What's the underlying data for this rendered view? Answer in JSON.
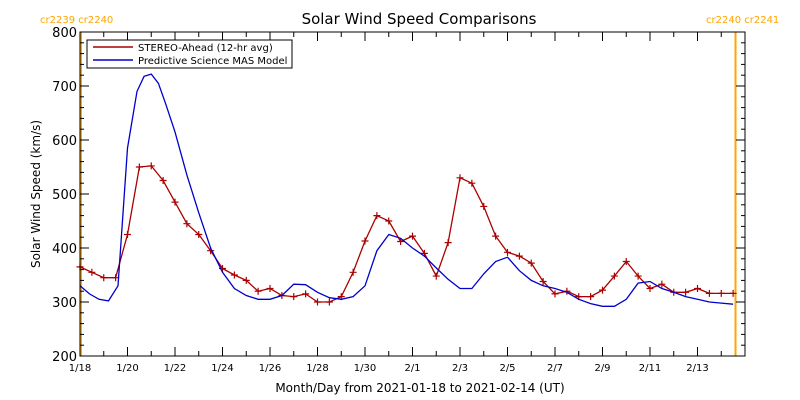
{
  "chart_data": {
    "type": "line",
    "title": "Solar Wind Speed Comparisons",
    "xlabel": "Month/Day from 2021-01-18 to 2021-02-14 (UT)",
    "ylabel": "Solar Wind Speed (km/s)",
    "ylim": [
      200,
      800
    ],
    "xlim_days": [
      0,
      28
    ],
    "x_ticks": [
      {
        "day": 0,
        "label": "1/18"
      },
      {
        "day": 2,
        "label": "1/20"
      },
      {
        "day": 4,
        "label": "1/22"
      },
      {
        "day": 6,
        "label": "1/24"
      },
      {
        "day": 8,
        "label": "1/26"
      },
      {
        "day": 10,
        "label": "1/28"
      },
      {
        "day": 12,
        "label": "1/30"
      },
      {
        "day": 14,
        "label": "2/1"
      },
      {
        "day": 16,
        "label": "2/3"
      },
      {
        "day": 18,
        "label": "2/5"
      },
      {
        "day": 20,
        "label": "2/7"
      },
      {
        "day": 22,
        "label": "2/9"
      },
      {
        "day": 24,
        "label": "2/11"
      },
      {
        "day": 26,
        "label": "2/13"
      }
    ],
    "y_ticks": [
      200,
      300,
      400,
      500,
      600,
      700,
      800
    ],
    "legend_position": "top-left",
    "carrington": {
      "left_label": "cr2239 cr2240",
      "right_label": "cr2240 cr2241",
      "left_day": 0,
      "right_day": 27.6,
      "color": "#ffa500"
    },
    "series": [
      {
        "name": "STEREO-Ahead (12-hr avg)",
        "color": "#aa0000",
        "marker": "plus",
        "x": [
          0,
          0.5,
          1,
          1.5,
          2,
          2.5,
          3,
          3.5,
          4,
          4.5,
          5,
          5.5,
          6,
          6.5,
          7,
          7.5,
          8,
          8.5,
          9,
          9.5,
          10,
          10.5,
          11,
          11.5,
          12,
          12.5,
          13,
          13.5,
          14,
          14.5,
          15,
          15.5,
          16,
          16.5,
          17,
          17.5,
          18,
          18.5,
          19,
          19.5,
          20,
          20.5,
          21,
          21.5,
          22,
          22.5,
          23,
          23.5,
          24,
          24.5,
          25,
          25.5,
          26,
          26.5,
          27,
          27.5
        ],
        "y": [
          365,
          355,
          345,
          345,
          425,
          550,
          552,
          525,
          485,
          445,
          425,
          395,
          362,
          350,
          340,
          320,
          325,
          312,
          310,
          315,
          300,
          300,
          310,
          355,
          413,
          460,
          450,
          412,
          422,
          390,
          348,
          410,
          530,
          520,
          477,
          422,
          392,
          385,
          372,
          338,
          315,
          320,
          310,
          310,
          322,
          348,
          375,
          348,
          325,
          333,
          318,
          318,
          325,
          316,
          316,
          316
        ]
      },
      {
        "name": "Predictive Science MAS Model",
        "color": "#0000cc",
        "marker": "none",
        "x": [
          0,
          0.4,
          0.8,
          1.2,
          1.6,
          2,
          2.4,
          2.7,
          3,
          3.3,
          3.6,
          4,
          4.5,
          5,
          5.5,
          6,
          6.5,
          7,
          7.5,
          8,
          8.5,
          9,
          9.5,
          10,
          10.5,
          11,
          11.5,
          12,
          12.5,
          13,
          13.5,
          14,
          14.5,
          15,
          15.5,
          16,
          16.5,
          17,
          17.5,
          18,
          18.5,
          19,
          19.5,
          20,
          20.5,
          21,
          21.5,
          22,
          22.5,
          23,
          23.5,
          24,
          24.5,
          25,
          25.5,
          26,
          26.5,
          27,
          27.5
        ],
        "y": [
          330,
          315,
          305,
          302,
          330,
          585,
          690,
          718,
          722,
          705,
          668,
          615,
          535,
          465,
          400,
          355,
          325,
          312,
          305,
          305,
          312,
          333,
          332,
          318,
          308,
          305,
          310,
          330,
          395,
          425,
          418,
          400,
          385,
          363,
          342,
          325,
          325,
          352,
          375,
          383,
          358,
          340,
          330,
          325,
          318,
          305,
          297,
          292,
          292,
          305,
          335,
          338,
          325,
          318,
          310,
          305,
          300,
          298,
          296
        ]
      }
    ]
  }
}
